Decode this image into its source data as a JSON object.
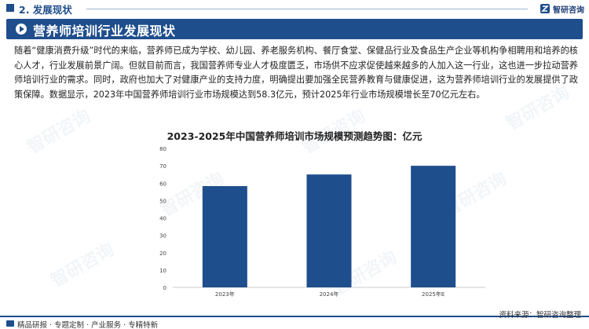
{
  "header": {
    "section_title": "2. 发展现状",
    "logo_text": "智研咨询",
    "logo_icon": "zhiyan-logo-icon"
  },
  "banner": {
    "title": "营养师培训行业发展现状",
    "bullet_icon": "play-bullet-icon"
  },
  "body": {
    "paragraph": "随着“健康消费升级”时代的来临，营养师已成为学校、幼儿园、养老服务机构、餐厅食堂、保健品行业及食品生产企业等机构争相聘用和培养的核心人才，行业发展前景广阔。但就目前而言，我国营养师专业人才极度匮乏，市场供不应求促使越来越多的人加入这一行业，这也进一步拉动营养师培训行业的需求。同时，政府也加大了对健康产业的支持力度，明确提出要加强全民营养教育与健康促进，这为营养师培训行业的发展提供了政策保障。数据显示，2023年中国营养师培训行业市场规模达到58.3亿元，预计2025年行业市场规模增长至70亿元左右。"
  },
  "watermark": "智研咨询",
  "chart_data": {
    "type": "bar",
    "title": "2023-2025年中国营养师培训市场规模预测趋势图：亿元",
    "categories": [
      "2023年",
      "2024年",
      "2025年E"
    ],
    "values": [
      58.3,
      65,
      70
    ],
    "ylim": [
      0,
      80
    ],
    "yticks": [
      0,
      10,
      20,
      30,
      40,
      50,
      60,
      70,
      80
    ],
    "xlabel": "",
    "ylabel": "",
    "grid": false,
    "bar_color": "#1f4e8c"
  },
  "footer": {
    "features": "精品研报 · 专题定制 · 产业服务 · 专精特新",
    "source": "资料来源：智研咨询整理",
    "features_icon": "book-icon"
  }
}
